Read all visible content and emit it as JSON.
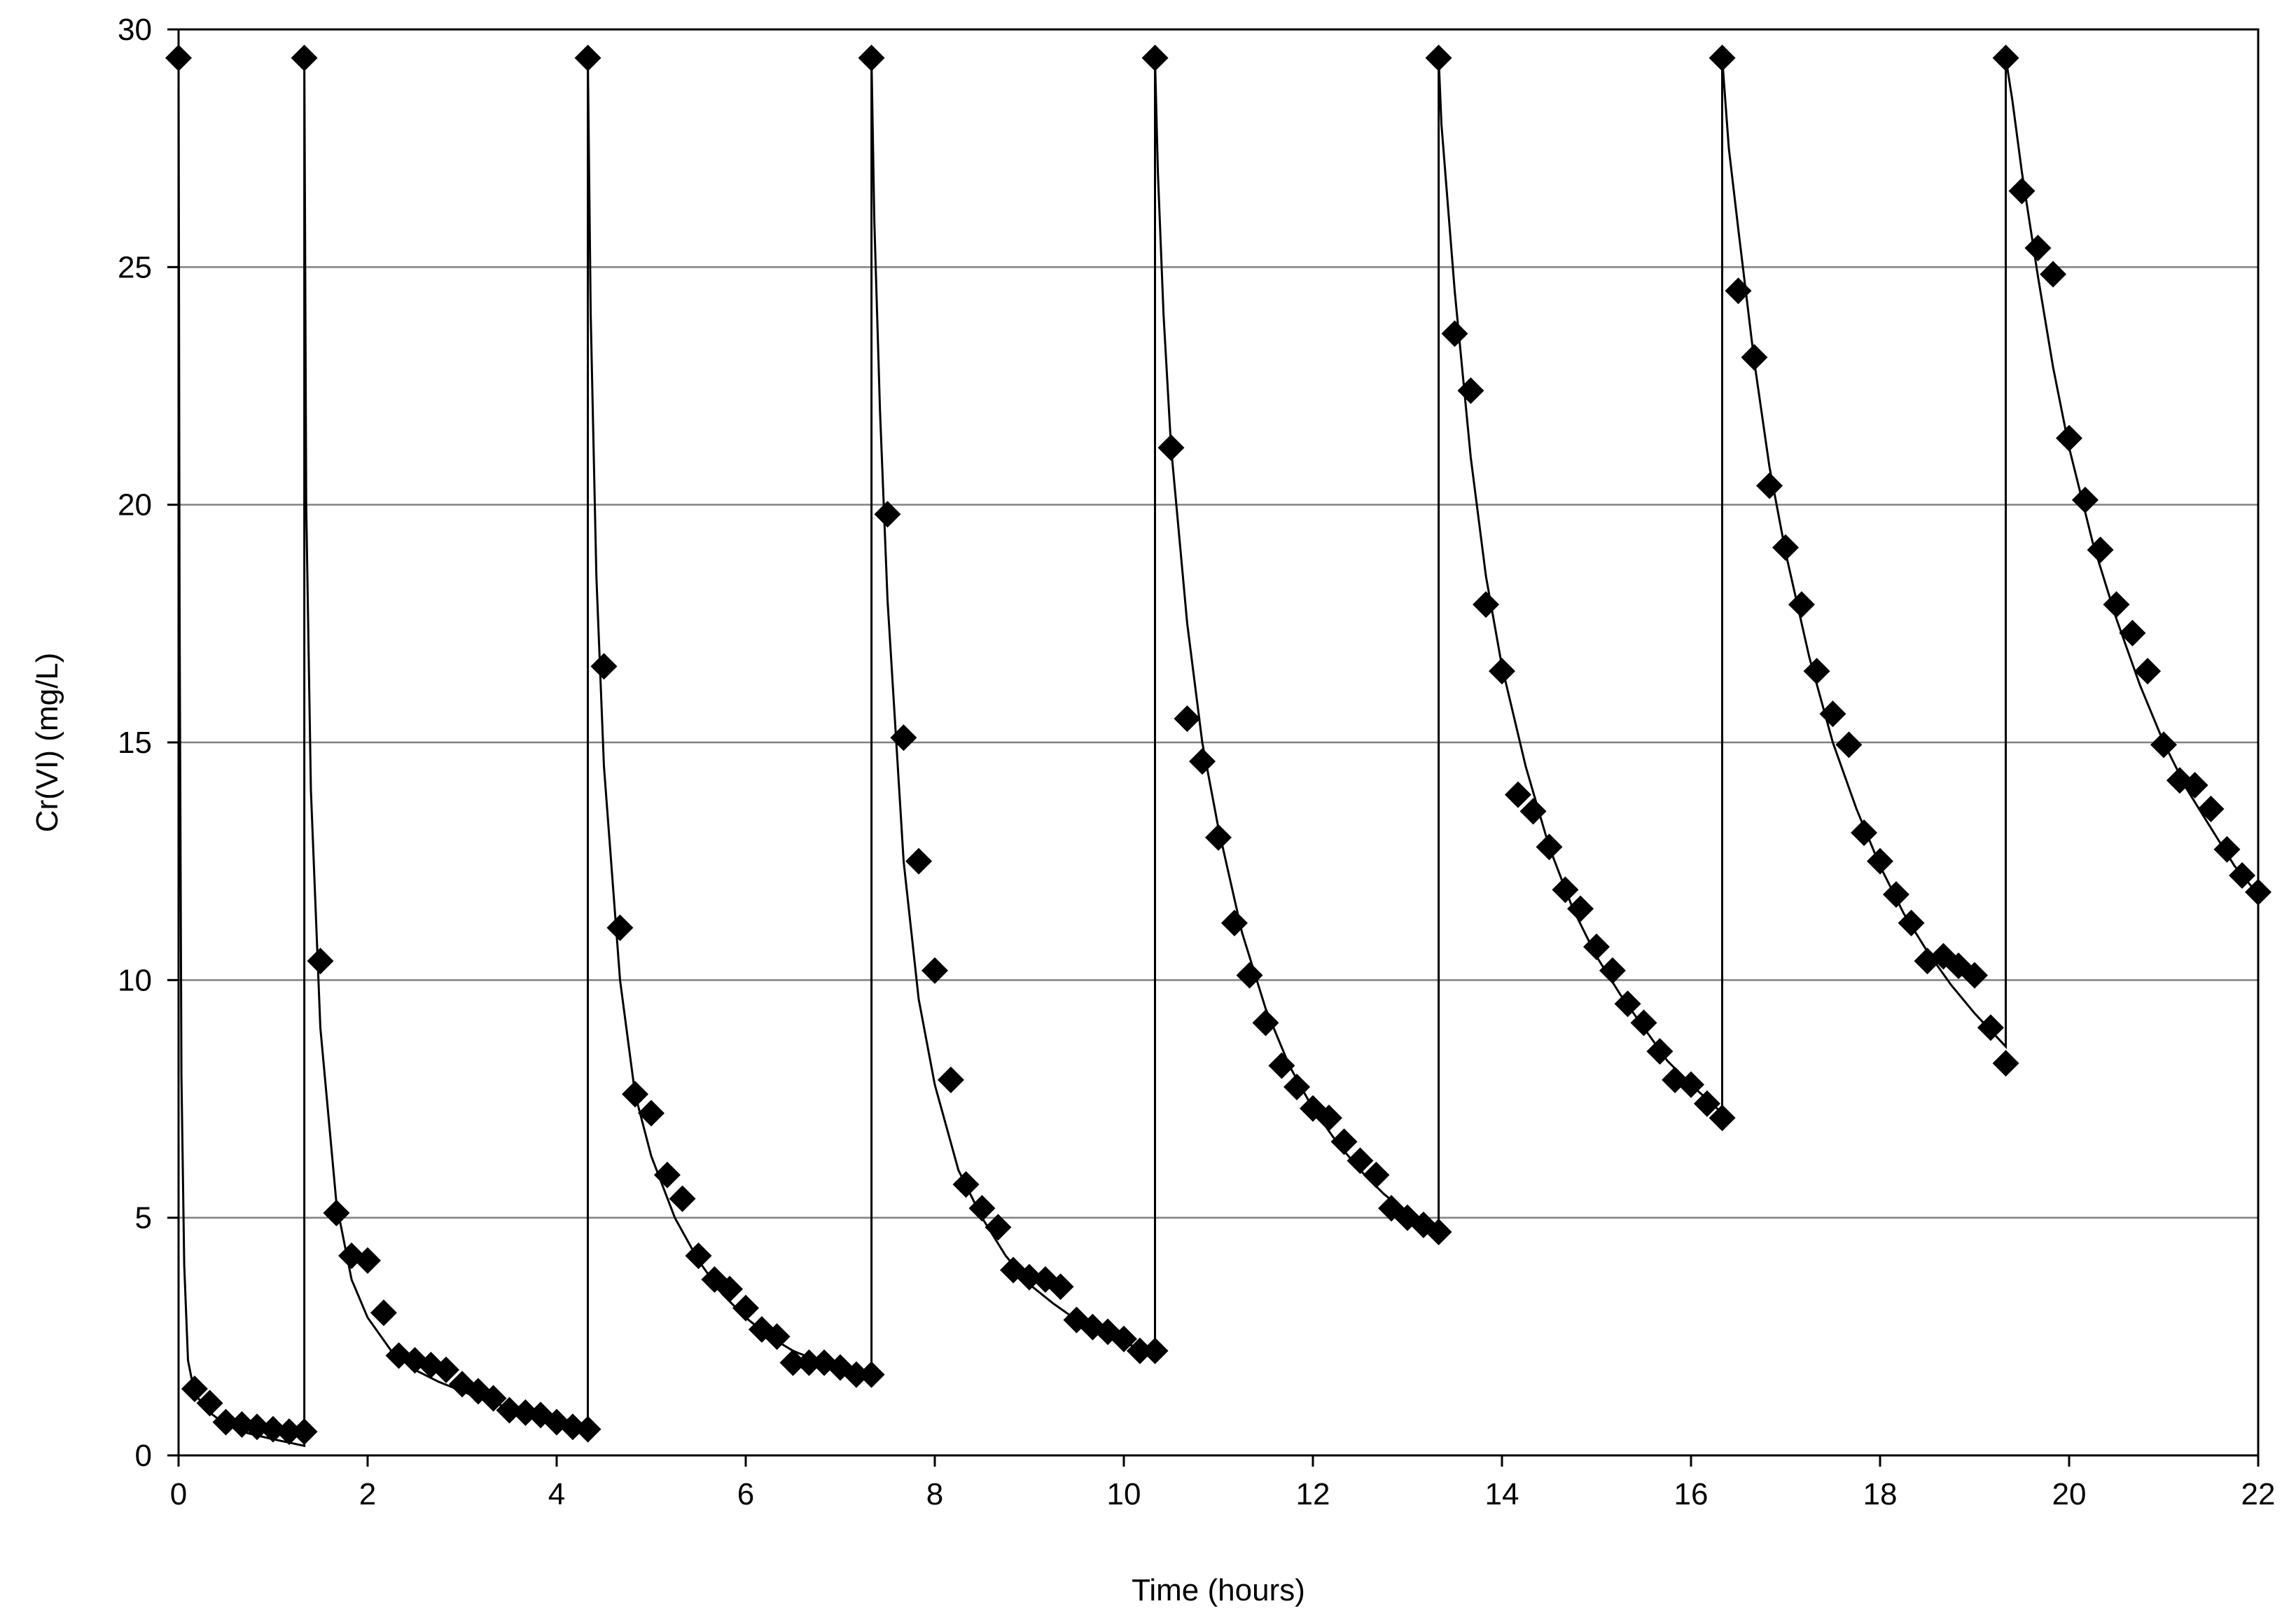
{
  "chart_data": {
    "type": "scatter",
    "title": "",
    "xlabel": "Time (hours)",
    "ylabel": "Cr(VI)  (mg/L)",
    "xlim": [
      0,
      22
    ],
    "ylim": [
      0,
      30
    ],
    "x_ticks": [
      0,
      2,
      4,
      6,
      8,
      10,
      12,
      14,
      16,
      18,
      20,
      22
    ],
    "y_ticks": [
      0,
      5,
      10,
      15,
      20,
      25,
      30
    ],
    "x_tick_labels": [
      "0",
      "2",
      "4",
      "6",
      "8",
      "10",
      "12",
      "14",
      "16",
      "18",
      "20",
      "22"
    ],
    "y_tick_labels": [
      "0",
      "5",
      "10",
      "15",
      "20",
      "25",
      "30"
    ],
    "grid": "horizontal",
    "legend": "none",
    "colors": {
      "marker": "#000000",
      "line": "#000000",
      "grid": "#808080"
    },
    "series": [
      {
        "marker": "diamond",
        "points": [
          [
            0,
            29.4
          ],
          [
            0.17,
            1.4
          ],
          [
            0.33,
            1.1
          ],
          [
            0.5,
            0.7
          ],
          [
            0.67,
            0.65
          ],
          [
            0.83,
            0.6
          ],
          [
            1.0,
            0.55
          ],
          [
            1.17,
            0.5
          ],
          [
            1.33,
            0.5
          ],
          [
            1.33,
            29.4
          ],
          [
            1.5,
            10.4
          ],
          [
            1.67,
            5.1
          ],
          [
            1.83,
            4.2
          ],
          [
            2.0,
            4.1
          ],
          [
            2.17,
            3.0
          ],
          [
            2.33,
            2.1
          ],
          [
            2.5,
            2.0
          ],
          [
            2.67,
            1.9
          ],
          [
            2.83,
            1.8
          ],
          [
            3.0,
            1.5
          ],
          [
            3.17,
            1.35
          ],
          [
            3.33,
            1.2
          ],
          [
            3.5,
            0.95
          ],
          [
            3.67,
            0.9
          ],
          [
            3.83,
            0.85
          ],
          [
            4.0,
            0.7
          ],
          [
            4.17,
            0.6
          ],
          [
            4.33,
            0.55
          ],
          [
            4.33,
            29.4
          ],
          [
            4.5,
            16.6
          ],
          [
            4.67,
            11.1
          ],
          [
            4.83,
            7.6
          ],
          [
            5.0,
            7.2
          ],
          [
            5.17,
            5.9
          ],
          [
            5.33,
            5.4
          ],
          [
            5.5,
            4.2
          ],
          [
            5.67,
            3.7
          ],
          [
            5.83,
            3.5
          ],
          [
            6.0,
            3.1
          ],
          [
            6.17,
            2.65
          ],
          [
            6.33,
            2.5
          ],
          [
            6.5,
            1.95
          ],
          [
            6.67,
            1.95
          ],
          [
            6.83,
            1.95
          ],
          [
            7.0,
            1.85
          ],
          [
            7.17,
            1.7
          ],
          [
            7.33,
            1.7
          ],
          [
            7.33,
            29.4
          ],
          [
            7.5,
            19.8
          ],
          [
            7.67,
            15.1
          ],
          [
            7.83,
            12.5
          ],
          [
            8.0,
            10.2
          ],
          [
            8.17,
            7.9
          ],
          [
            8.33,
            5.7
          ],
          [
            8.5,
            5.2
          ],
          [
            8.67,
            4.8
          ],
          [
            8.83,
            3.9
          ],
          [
            9.0,
            3.75
          ],
          [
            9.17,
            3.7
          ],
          [
            9.33,
            3.55
          ],
          [
            9.5,
            2.85
          ],
          [
            9.67,
            2.7
          ],
          [
            9.83,
            2.6
          ],
          [
            10.0,
            2.45
          ],
          [
            10.17,
            2.2
          ],
          [
            10.33,
            2.2
          ],
          [
            10.33,
            29.4
          ],
          [
            10.5,
            21.2
          ],
          [
            10.67,
            15.5
          ],
          [
            10.83,
            14.6
          ],
          [
            11.0,
            13.0
          ],
          [
            11.17,
            11.2
          ],
          [
            11.33,
            10.1
          ],
          [
            11.5,
            9.1
          ],
          [
            11.67,
            8.2
          ],
          [
            11.83,
            7.75
          ],
          [
            12.0,
            7.3
          ],
          [
            12.17,
            7.1
          ],
          [
            12.33,
            6.6
          ],
          [
            12.5,
            6.2
          ],
          [
            12.67,
            5.9
          ],
          [
            12.83,
            5.2
          ],
          [
            13.0,
            5.0
          ],
          [
            13.17,
            4.85
          ],
          [
            13.33,
            4.7
          ],
          [
            13.33,
            29.4
          ],
          [
            13.5,
            23.6
          ],
          [
            13.67,
            22.4
          ],
          [
            13.83,
            17.9
          ],
          [
            14.0,
            16.5
          ],
          [
            14.17,
            13.9
          ],
          [
            14.33,
            13.55
          ],
          [
            14.5,
            12.8
          ],
          [
            14.67,
            11.9
          ],
          [
            14.83,
            11.5
          ],
          [
            15.0,
            10.7
          ],
          [
            15.17,
            10.2
          ],
          [
            15.33,
            9.5
          ],
          [
            15.5,
            9.1
          ],
          [
            15.67,
            8.5
          ],
          [
            15.83,
            7.9
          ],
          [
            16.0,
            7.8
          ],
          [
            16.17,
            7.4
          ],
          [
            16.33,
            7.1
          ],
          [
            16.33,
            29.4
          ],
          [
            16.5,
            24.5
          ],
          [
            16.67,
            23.1
          ],
          [
            16.83,
            20.4
          ],
          [
            17.0,
            19.1
          ],
          [
            17.17,
            17.9
          ],
          [
            17.33,
            16.5
          ],
          [
            17.5,
            15.6
          ],
          [
            17.67,
            14.95
          ],
          [
            17.83,
            13.1
          ],
          [
            18.0,
            12.5
          ],
          [
            18.17,
            11.8
          ],
          [
            18.33,
            11.2
          ],
          [
            18.5,
            10.4
          ],
          [
            18.67,
            10.5
          ],
          [
            18.83,
            10.3
          ],
          [
            19.0,
            10.1
          ],
          [
            19.17,
            9.0
          ],
          [
            19.33,
            8.25
          ],
          [
            19.33,
            29.4
          ],
          [
            19.5,
            26.6
          ],
          [
            19.67,
            25.4
          ],
          [
            19.83,
            24.85
          ],
          [
            20.0,
            21.4
          ],
          [
            20.17,
            20.1
          ],
          [
            20.33,
            19.05
          ],
          [
            20.5,
            17.9
          ],
          [
            20.67,
            17.3
          ],
          [
            20.83,
            16.5
          ],
          [
            21.0,
            14.95
          ],
          [
            21.17,
            14.2
          ],
          [
            21.33,
            14.1
          ],
          [
            21.5,
            13.6
          ],
          [
            21.67,
            12.75
          ],
          [
            21.83,
            12.2
          ],
          [
            22.0,
            11.85
          ]
        ]
      },
      {
        "marker": "none",
        "model_line": true,
        "points": [
          [
            0,
            29.4
          ],
          [
            0.01,
            18.0
          ],
          [
            0.03,
            8.0
          ],
          [
            0.06,
            4.0
          ],
          [
            0.1,
            2.0
          ],
          [
            0.17,
            1.3
          ],
          [
            0.33,
            0.9
          ],
          [
            0.5,
            0.65
          ],
          [
            0.67,
            0.5
          ],
          [
            0.83,
            0.42
          ],
          [
            1.0,
            0.34
          ],
          [
            1.17,
            0.27
          ],
          [
            1.33,
            0.2
          ],
          [
            1.33,
            29.4
          ],
          [
            1.35,
            20.0
          ],
          [
            1.4,
            14.0
          ],
          [
            1.5,
            9.0
          ],
          [
            1.67,
            5.3
          ],
          [
            1.83,
            3.7
          ],
          [
            2.0,
            2.9
          ],
          [
            2.25,
            2.2
          ],
          [
            2.5,
            1.8
          ],
          [
            2.75,
            1.55
          ],
          [
            3.0,
            1.35
          ],
          [
            3.25,
            1.15
          ],
          [
            3.5,
            1.0
          ],
          [
            3.75,
            0.85
          ],
          [
            4.0,
            0.72
          ],
          [
            4.33,
            0.6
          ],
          [
            4.33,
            29.4
          ],
          [
            4.36,
            24.0
          ],
          [
            4.42,
            18.5
          ],
          [
            4.5,
            14.5
          ],
          [
            4.67,
            10.0
          ],
          [
            4.83,
            7.6
          ],
          [
            5.0,
            6.3
          ],
          [
            5.25,
            5.0
          ],
          [
            5.5,
            4.1
          ],
          [
            5.75,
            3.4
          ],
          [
            6.0,
            2.9
          ],
          [
            6.25,
            2.5
          ],
          [
            6.5,
            2.2
          ],
          [
            6.75,
            2.0
          ],
          [
            7.0,
            1.85
          ],
          [
            7.33,
            1.75
          ],
          [
            7.33,
            29.4
          ],
          [
            7.36,
            26.0
          ],
          [
            7.42,
            22.0
          ],
          [
            7.5,
            18.0
          ],
          [
            7.67,
            12.5
          ],
          [
            7.83,
            9.6
          ],
          [
            8.0,
            7.8
          ],
          [
            8.25,
            6.0
          ],
          [
            8.5,
            5.0
          ],
          [
            8.75,
            4.2
          ],
          [
            9.0,
            3.6
          ],
          [
            9.25,
            3.2
          ],
          [
            9.5,
            2.85
          ],
          [
            9.75,
            2.55
          ],
          [
            10.0,
            2.35
          ],
          [
            10.33,
            2.2
          ],
          [
            10.33,
            29.4
          ],
          [
            10.36,
            27.0
          ],
          [
            10.42,
            24.0
          ],
          [
            10.5,
            21.2
          ],
          [
            10.67,
            17.5
          ],
          [
            10.83,
            15.0
          ],
          [
            11.0,
            13.2
          ],
          [
            11.25,
            11.0
          ],
          [
            11.5,
            9.4
          ],
          [
            11.75,
            8.2
          ],
          [
            12.0,
            7.3
          ],
          [
            12.25,
            6.6
          ],
          [
            12.5,
            6.0
          ],
          [
            12.75,
            5.5
          ],
          [
            13.0,
            5.1
          ],
          [
            13.33,
            4.7
          ],
          [
            13.33,
            29.4
          ],
          [
            13.36,
            28.0
          ],
          [
            13.42,
            26.5
          ],
          [
            13.5,
            24.5
          ],
          [
            13.67,
            21.0
          ],
          [
            13.83,
            18.5
          ],
          [
            14.0,
            16.6
          ],
          [
            14.25,
            14.5
          ],
          [
            14.5,
            12.8
          ],
          [
            14.75,
            11.5
          ],
          [
            15.0,
            10.5
          ],
          [
            15.25,
            9.7
          ],
          [
            15.5,
            9.0
          ],
          [
            15.75,
            8.3
          ],
          [
            16.0,
            7.8
          ],
          [
            16.33,
            7.2
          ],
          [
            16.33,
            29.4
          ],
          [
            16.4,
            27.5
          ],
          [
            16.5,
            25.8
          ],
          [
            16.67,
            23.0
          ],
          [
            16.83,
            20.8
          ],
          [
            17.0,
            19.0
          ],
          [
            17.25,
            16.8
          ],
          [
            17.5,
            15.0
          ],
          [
            17.75,
            13.6
          ],
          [
            18.0,
            12.4
          ],
          [
            18.25,
            11.4
          ],
          [
            18.5,
            10.6
          ],
          [
            18.75,
            9.9
          ],
          [
            19.0,
            9.3
          ],
          [
            19.33,
            8.6
          ],
          [
            19.33,
            29.4
          ],
          [
            19.4,
            28.5
          ],
          [
            19.5,
            27.0
          ],
          [
            19.67,
            24.8
          ],
          [
            19.83,
            22.9
          ],
          [
            20.0,
            21.2
          ],
          [
            20.25,
            19.2
          ],
          [
            20.5,
            17.6
          ],
          [
            20.75,
            16.2
          ],
          [
            21.0,
            15.0
          ],
          [
            21.25,
            14.0
          ],
          [
            21.5,
            13.2
          ],
          [
            21.75,
            12.4
          ],
          [
            22.0,
            11.8
          ]
        ]
      }
    ]
  }
}
